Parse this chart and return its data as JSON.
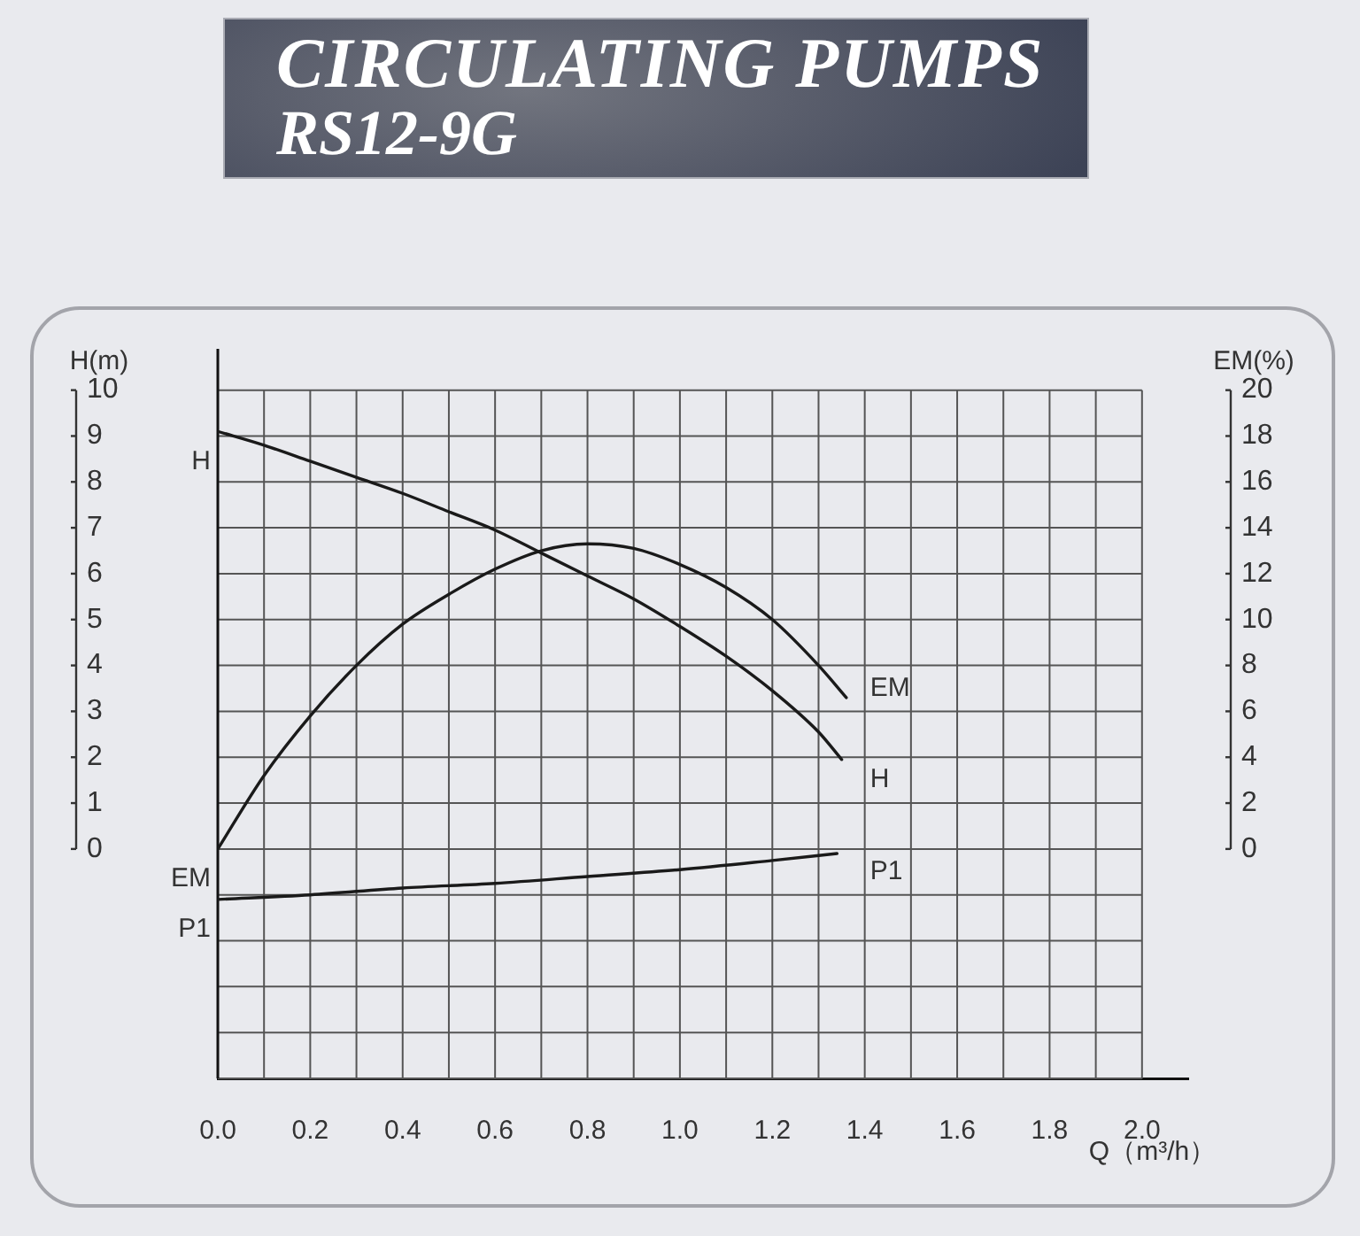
{
  "chart_data": {
    "type": "line",
    "title": "CIRCULATING PUMPS",
    "subtitle": "RS12-9G",
    "xlabel": "Q（m³/h）",
    "ylabel": "H(m)",
    "y2label": "EM(%)",
    "xlim": [
      0,
      2.1
    ],
    "xticks": [
      {
        "value": 0,
        "label": "0.0"
      },
      {
        "value": 0.1,
        "label": null
      },
      0.2,
      {
        "value": 0.3,
        "label": null
      },
      0.4,
      {
        "value": 0.5,
        "label": null
      },
      0.6,
      {
        "value": 0.7,
        "label": null
      },
      0.8,
      {
        "value": 0.9,
        "label": null
      },
      {
        "value": 1,
        "label": "1.0"
      },
      {
        "value": 1.1,
        "label": null
      },
      1.2,
      {
        "value": 1.3,
        "label": null
      },
      1.4,
      {
        "value": 1.5,
        "label": null
      },
      1.6,
      {
        "value": 1.7,
        "label": null
      },
      1.8,
      {
        "value": 1.9,
        "label": null
      },
      {
        "value": 2,
        "label": "2.0"
      }
    ],
    "ylim": [
      -5,
      10.9
    ],
    "yticks": [
      {
        "value": -5,
        "label": null
      },
      {
        "value": -4,
        "label": null
      },
      {
        "value": -3,
        "label": null
      },
      {
        "value": -2,
        "label": null
      },
      {
        "value": -1,
        "label": null
      },
      0,
      1,
      2,
      3,
      4,
      5,
      6,
      7,
      8,
      9,
      10
    ],
    "y2lim": [
      -10,
      21.8
    ],
    "y2ticks": [
      0,
      2,
      4,
      6,
      8,
      10,
      12,
      14,
      16,
      18,
      20
    ],
    "grid": true,
    "legend": false,
    "marker": "none",
    "line_style": "solid",
    "series": [
      {
        "name": "H",
        "color": "#1a1a1a",
        "x": [
          0,
          0.1,
          0.2,
          0.3,
          0.4,
          0.5,
          0.6,
          0.7,
          0.8,
          0.9,
          1,
          1.1,
          1.2,
          1.3,
          1.35
        ],
        "values": [
          9.1,
          8.8,
          8.45,
          8.1,
          7.75,
          7.35,
          6.95,
          6.45,
          5.95,
          5.45,
          4.85,
          4.2,
          3.45,
          2.55,
          1.95
        ]
      },
      {
        "name": "EM",
        "color": "#1a1a1a",
        "axis": "y2",
        "x": [
          0,
          0.1,
          0.2,
          0.3,
          0.4,
          0.5,
          0.6,
          0.7,
          0.8,
          0.9,
          1,
          1.1,
          1.2,
          1.3,
          1.36
        ],
        "values": [
          0,
          3.2,
          5.8,
          8.0,
          9.8,
          11.1,
          12.2,
          13.0,
          13.3,
          13.1,
          12.4,
          11.4,
          10.0,
          8.0,
          6.6
        ]
      },
      {
        "name": "P1",
        "color": "#1a1a1a",
        "x": [
          0,
          0.2,
          0.4,
          0.6,
          0.8,
          1,
          1.2,
          1.34
        ],
        "values": [
          -1.1,
          -1.0,
          -0.85,
          -0.75,
          -0.6,
          -0.45,
          -0.25,
          -0.1
        ]
      }
    ]
  }
}
